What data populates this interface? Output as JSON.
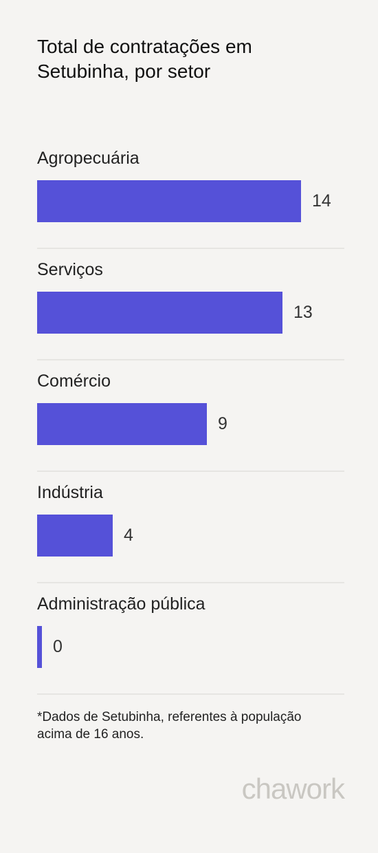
{
  "title": "Total de contratações em Setubinha, por setor",
  "chart_data": {
    "type": "bar",
    "orientation": "horizontal",
    "categories": [
      "Agropecuária",
      "Serviços",
      "Comércio",
      "Indústria",
      "Administração pública"
    ],
    "values": [
      14,
      13,
      9,
      4,
      0
    ],
    "xlim": [
      0,
      14
    ],
    "grid": false,
    "bar_color": "#5551d8"
  },
  "footnote": "*Dados de Setubinha, referentes à população acima de 16 anos.",
  "brand": {
    "name": "chawork"
  },
  "colors": {
    "background": "#f5f4f2",
    "bar": "#5551d8",
    "divider": "#e6e5e2",
    "logo": "#c9c7c2"
  }
}
